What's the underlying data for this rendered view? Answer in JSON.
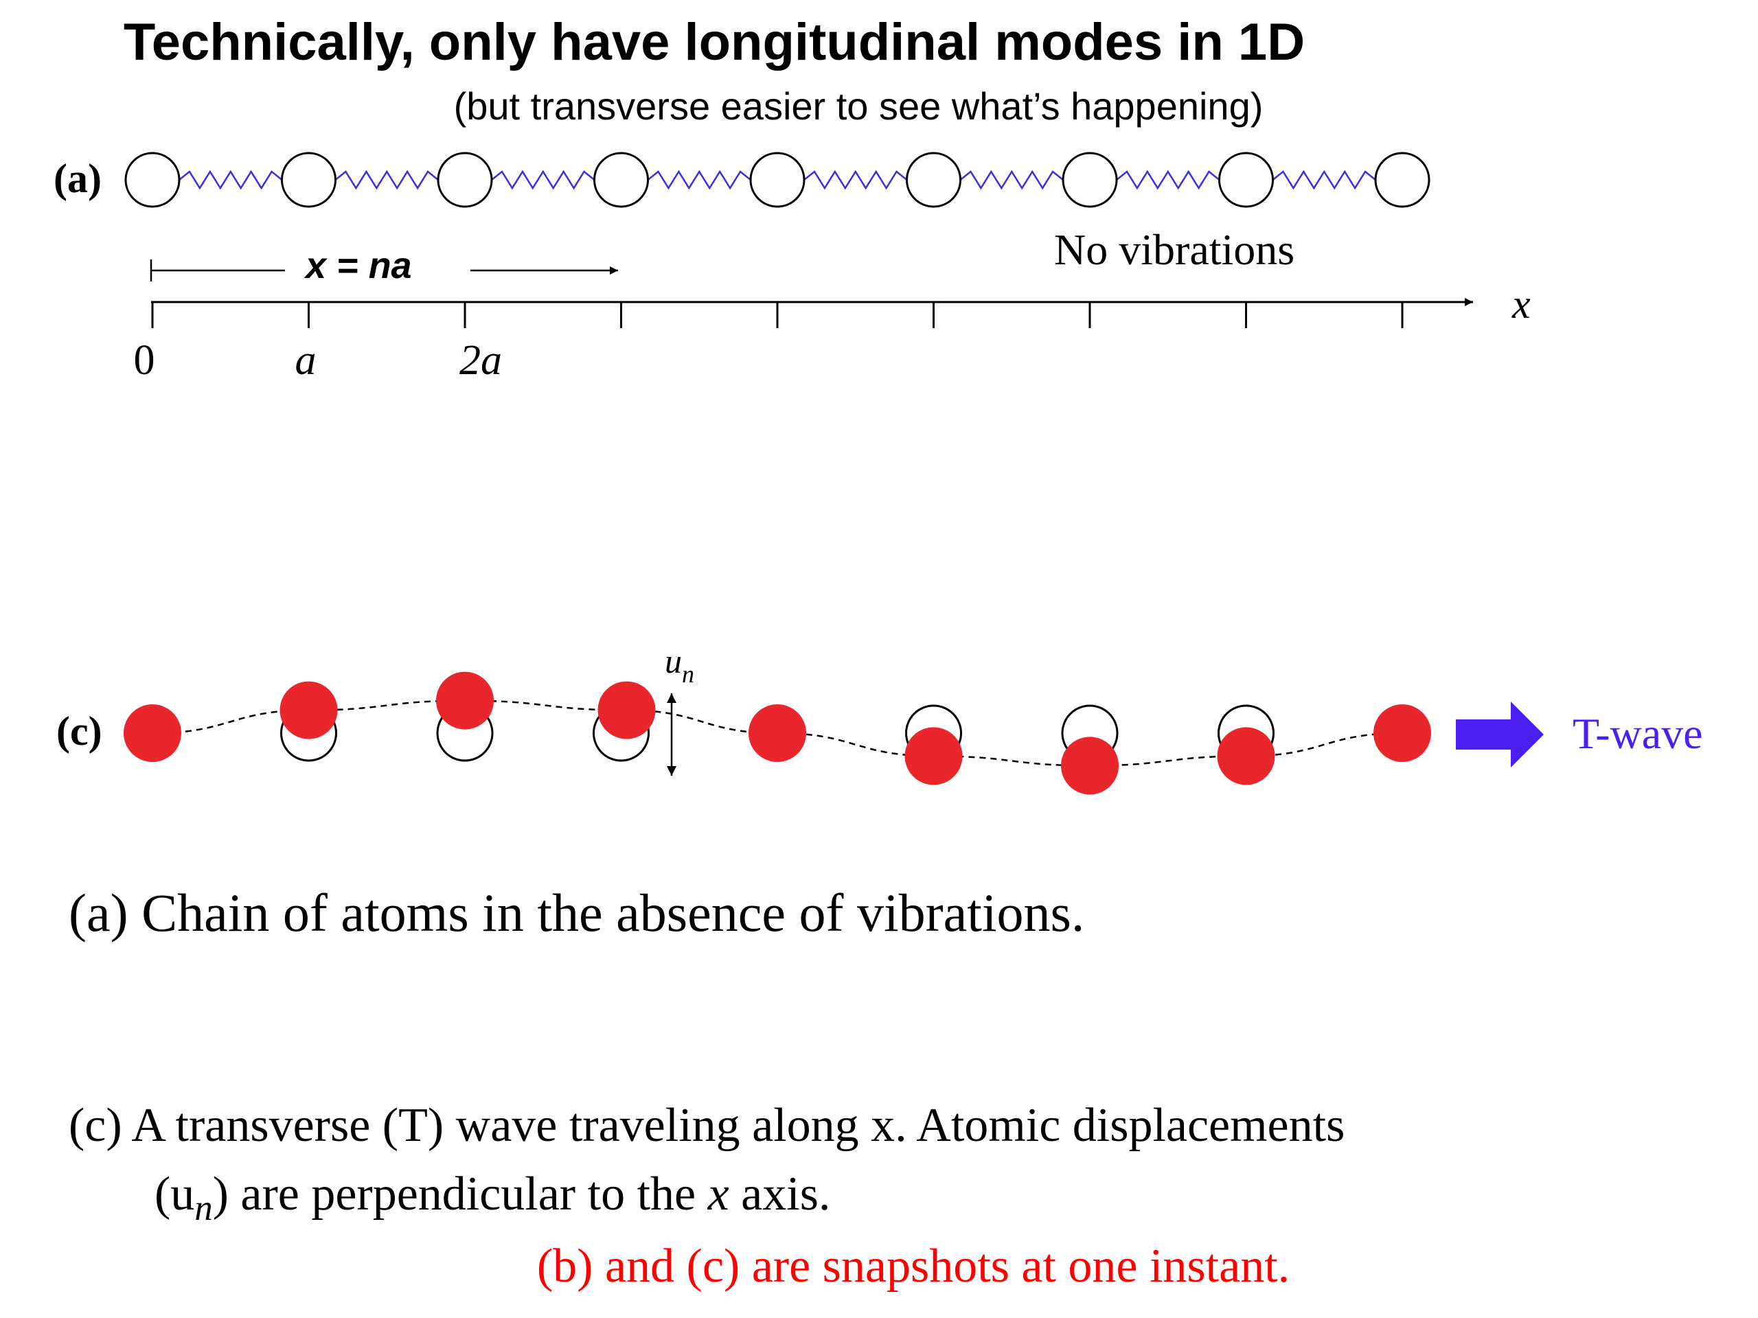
{
  "title": "Technically, only have longitudinal modes in 1D",
  "subtitle": "(but transverse easier to see what’s happening)",
  "panel_a": {
    "label": "(a)",
    "status": "No vibrations",
    "distance_label": "x = na",
    "axis_label": "x",
    "tick_labels": [
      "0",
      "a",
      "2a"
    ],
    "atom_count": 9,
    "spring_color": "#3a2ee6"
  },
  "panel_c": {
    "label": "(c)",
    "displacement_label": "u",
    "displacement_sub": "n",
    "wave_label": "T-wave",
    "wave_color": "#4b1ef2",
    "atom_color": "#e8262b",
    "atom_displacements": [
      0,
      0.55,
      0.78,
      0.55,
      0,
      -0.55,
      -0.78,
      -0.55,
      0
    ]
  },
  "captions": {
    "a": "(a) Chain of atoms in the absence of vibrations.",
    "c_line1": "(c) A transverse (T) wave traveling along x. Atomic displacements",
    "c_line2_open": "(u",
    "c_line2_sub": "n",
    "c_line2_mid": ") are perpendicular to the ",
    "c_line2_x": "x",
    "c_line2_end": " axis.",
    "note": "(b) and (c) are snapshots at one instant."
  }
}
